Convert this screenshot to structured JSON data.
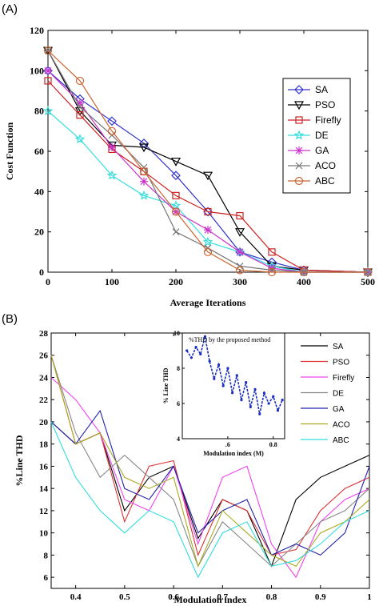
{
  "panels": {
    "a_label": "(A)",
    "b_label": "(B)"
  },
  "chart_data": [
    {
      "type": "line",
      "panel": "(A)",
      "xlabel": "Average Iterations",
      "ylabel": "Cost Function",
      "xlim": [
        0,
        500
      ],
      "ylim": [
        0,
        120
      ],
      "xticks": [
        0,
        100,
        200,
        300,
        400,
        500
      ],
      "yticks": [
        0,
        20,
        40,
        60,
        80,
        100,
        120
      ],
      "legend_position": "right",
      "series": [
        {
          "name": "SA",
          "color": "#3333cc",
          "marker": "diamond",
          "x": [
            0,
            50,
            100,
            150,
            200,
            250,
            300,
            350,
            400,
            500
          ],
          "y": [
            100,
            86,
            75,
            64,
            48,
            30,
            10,
            5,
            1,
            0
          ]
        },
        {
          "name": "PSO",
          "color": "#000000",
          "marker": "triangle-down",
          "x": [
            0,
            50,
            100,
            150,
            200,
            250,
            300,
            350,
            400,
            500
          ],
          "y": [
            110,
            80,
            63,
            62,
            55,
            48,
            20,
            3,
            1,
            0
          ]
        },
        {
          "name": "Firefly",
          "color": "#cc2222",
          "marker": "square",
          "x": [
            0,
            50,
            100,
            150,
            200,
            250,
            300,
            350,
            400,
            500
          ],
          "y": [
            95,
            78,
            61,
            50,
            38,
            30,
            28,
            10,
            1,
            0
          ]
        },
        {
          "name": "DE",
          "color": "#33dddd",
          "marker": "star",
          "x": [
            0,
            50,
            100,
            150,
            200,
            250,
            300,
            350,
            400,
            500
          ],
          "y": [
            80,
            66,
            48,
            38,
            33,
            15,
            10,
            3,
            0,
            0
          ]
        },
        {
          "name": "GA",
          "color": "#cc33cc",
          "marker": "asterisk",
          "x": [
            0,
            50,
            100,
            150,
            200,
            250,
            300,
            350,
            400,
            500
          ],
          "y": [
            100,
            84,
            62,
            45,
            30,
            21,
            10,
            2,
            0,
            0
          ]
        },
        {
          "name": "ACO",
          "color": "#777777",
          "marker": "x",
          "x": [
            0,
            50,
            100,
            150,
            200,
            250,
            300,
            350,
            400,
            500
          ],
          "y": [
            110,
            82,
            68,
            52,
            20,
            12,
            3,
            1,
            0,
            0
          ]
        },
        {
          "name": "ABC",
          "color": "#cc6633",
          "marker": "circle",
          "x": [
            0,
            50,
            100,
            150,
            200,
            250,
            300,
            350,
            400,
            500
          ],
          "y": [
            110,
            95,
            70,
            50,
            30,
            10,
            1,
            0,
            0,
            0
          ]
        }
      ]
    },
    {
      "type": "line",
      "panel": "(B)",
      "xlabel": "Modulation index",
      "ylabel": "%Line THD",
      "xlim": [
        0.35,
        1
      ],
      "ylim": [
        5,
        28
      ],
      "xticks": [
        0.4,
        0.5,
        0.6,
        0.7,
        0.8,
        0.9,
        1
      ],
      "xtick_labels": [
        "0.4",
        "0.5",
        "0.6",
        "0.7",
        "0.8",
        "0.9",
        "1"
      ],
      "yticks": [
        6,
        8,
        10,
        12,
        14,
        16,
        18,
        20,
        22,
        24,
        26,
        28
      ],
      "legend_position": "top-right",
      "series": [
        {
          "name": "SA",
          "color": "#000000",
          "x": [
            0.35,
            0.4,
            0.45,
            0.5,
            0.55,
            0.6,
            0.65,
            0.7,
            0.75,
            0.8,
            0.85,
            0.9,
            0.95,
            1
          ],
          "y": [
            20,
            18,
            19,
            12,
            15,
            16,
            9.5,
            13,
            12,
            7,
            13,
            15,
            16,
            17
          ]
        },
        {
          "name": "PSO",
          "color": "#dd3333",
          "x": [
            0.35,
            0.4,
            0.45,
            0.5,
            0.55,
            0.6,
            0.65,
            0.7,
            0.75,
            0.8,
            0.85,
            0.9,
            0.95,
            1
          ],
          "y": [
            26,
            18,
            19,
            11,
            16,
            16.5,
            8,
            13,
            12,
            8,
            8.5,
            12,
            14,
            15
          ]
        },
        {
          "name": "Firefly",
          "color": "#ee44ee",
          "x": [
            0.35,
            0.4,
            0.45,
            0.5,
            0.55,
            0.6,
            0.65,
            0.7,
            0.75,
            0.8,
            0.85,
            0.9,
            0.95,
            1
          ],
          "y": [
            24,
            22,
            19,
            13,
            12,
            16,
            9,
            15,
            16,
            9,
            6,
            11,
            13,
            14
          ]
        },
        {
          "name": "DE",
          "color": "#888888",
          "x": [
            0.35,
            0.4,
            0.45,
            0.5,
            0.55,
            0.6,
            0.65,
            0.7,
            0.75,
            0.8,
            0.85,
            0.9,
            0.95,
            1
          ],
          "y": [
            26,
            19,
            15,
            17,
            15,
            13,
            7,
            11,
            9,
            7,
            9,
            11,
            12,
            14
          ]
        },
        {
          "name": "GA",
          "color": "#2222aa",
          "x": [
            0.35,
            0.4,
            0.45,
            0.5,
            0.55,
            0.6,
            0.65,
            0.7,
            0.75,
            0.8,
            0.85,
            0.9,
            0.95,
            1
          ],
          "y": [
            20,
            18,
            21,
            14,
            13,
            16,
            10,
            12,
            13,
            8,
            9,
            8,
            10,
            16
          ]
        },
        {
          "name": "ACO",
          "color": "#aaaa22",
          "x": [
            0.35,
            0.4,
            0.45,
            0.5,
            0.55,
            0.6,
            0.65,
            0.7,
            0.75,
            0.8,
            0.85,
            0.9,
            0.95,
            1
          ],
          "y": [
            26,
            18,
            19,
            15,
            14,
            15,
            7,
            12,
            10,
            8,
            7,
            10,
            11,
            13
          ]
        },
        {
          "name": "ABC",
          "color": "#33dddd",
          "x": [
            0.35,
            0.4,
            0.45,
            0.5,
            0.55,
            0.6,
            0.65,
            0.7,
            0.75,
            0.8,
            0.85,
            0.9,
            0.95,
            1
          ],
          "y": [
            20,
            15,
            12,
            10,
            12,
            11,
            6,
            10,
            11,
            7,
            7.5,
            9,
            11,
            12
          ]
        }
      ],
      "inset": {
        "title": "%THD by the proposed method",
        "xlabel": "Modulation index (M)",
        "ylabel": "% Line THD",
        "xlim": [
          0.4,
          0.85
        ],
        "ylim": [
          4,
          10
        ],
        "xticks": [
          0.6,
          0.8
        ],
        "xtick_labels": [
          ".6",
          "0.8"
        ],
        "yticks": [
          4,
          6,
          8,
          10
        ],
        "color": "#1a2fbf",
        "x": [
          0.42,
          0.44,
          0.46,
          0.48,
          0.5,
          0.52,
          0.54,
          0.56,
          0.58,
          0.6,
          0.62,
          0.64,
          0.66,
          0.68,
          0.7,
          0.72,
          0.74,
          0.76,
          0.78,
          0.8,
          0.82,
          0.84
        ],
        "y": [
          9.0,
          8.6,
          9.2,
          8.8,
          9.8,
          8.4,
          7.4,
          8.2,
          7.0,
          8.0,
          6.6,
          7.6,
          6.2,
          7.2,
          5.8,
          6.8,
          5.4,
          6.6,
          6.0,
          6.4,
          5.6,
          6.2
        ]
      }
    }
  ]
}
